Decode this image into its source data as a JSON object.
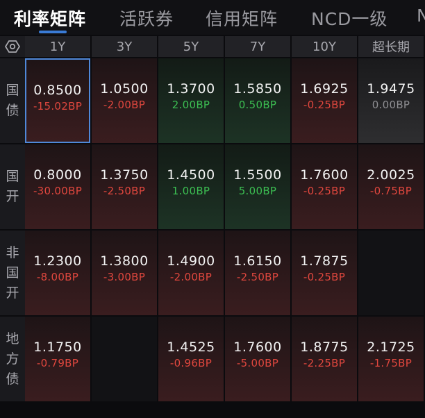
{
  "tabs": [
    {
      "label": "利率矩阵",
      "active": true
    },
    {
      "label": "活跃券",
      "active": false
    },
    {
      "label": "信用矩阵",
      "active": false
    },
    {
      "label": "NCD一级",
      "active": false
    },
    {
      "label": "N",
      "active": false
    }
  ],
  "header": {
    "settings_icon": "settings-icon",
    "columns": [
      "1Y",
      "3Y",
      "5Y",
      "7Y",
      "10Y",
      "超长期"
    ]
  },
  "rows": [
    {
      "label": [
        "国",
        "债"
      ],
      "cells": [
        {
          "value": "0.8500",
          "change": "-15.02BP",
          "tone": "red",
          "selected": true
        },
        {
          "value": "1.0500",
          "change": "-2.00BP",
          "tone": "red"
        },
        {
          "value": "1.3700",
          "change": "2.00BP",
          "tone": "green"
        },
        {
          "value": "1.5850",
          "change": "0.50BP",
          "tone": "green"
        },
        {
          "value": "1.6925",
          "change": "-0.25BP",
          "tone": "red"
        },
        {
          "value": "1.9475",
          "change": "0.00BP",
          "tone": "gray"
        }
      ]
    },
    {
      "label": [
        "国",
        "开"
      ],
      "cells": [
        {
          "value": "0.8000",
          "change": "-30.00BP",
          "tone": "red"
        },
        {
          "value": "1.3750",
          "change": "-2.50BP",
          "tone": "red"
        },
        {
          "value": "1.4500",
          "change": "1.00BP",
          "tone": "green"
        },
        {
          "value": "1.5500",
          "change": "5.00BP",
          "tone": "green"
        },
        {
          "value": "1.7600",
          "change": "-0.25BP",
          "tone": "red"
        },
        {
          "value": "2.0025",
          "change": "-0.75BP",
          "tone": "red"
        }
      ]
    },
    {
      "label": [
        "非",
        "国",
        "开"
      ],
      "cells": [
        {
          "value": "1.2300",
          "change": "-8.00BP",
          "tone": "red"
        },
        {
          "value": "1.3800",
          "change": "-3.00BP",
          "tone": "red"
        },
        {
          "value": "1.4900",
          "change": "-2.00BP",
          "tone": "red"
        },
        {
          "value": "1.6150",
          "change": "-2.50BP",
          "tone": "red"
        },
        {
          "value": "1.7875",
          "change": "-0.25BP",
          "tone": "red"
        },
        {
          "value": "",
          "change": "",
          "tone": "empty"
        }
      ]
    },
    {
      "label": [
        "地",
        "方",
        "债"
      ],
      "cells": [
        {
          "value": "1.1750",
          "change": "-0.79BP",
          "tone": "red"
        },
        {
          "value": "",
          "change": "",
          "tone": "empty"
        },
        {
          "value": "1.4525",
          "change": "-0.96BP",
          "tone": "red"
        },
        {
          "value": "1.7600",
          "change": "-5.00BP",
          "tone": "red"
        },
        {
          "value": "1.8775",
          "change": "-2.25BP",
          "tone": "red"
        },
        {
          "value": "2.1725",
          "change": "-1.75BP",
          "tone": "red"
        }
      ]
    }
  ],
  "colors": {
    "accent": "#4f88d9",
    "down": "#e0473e",
    "up": "#3cbf52",
    "flat": "#8e8e92"
  }
}
